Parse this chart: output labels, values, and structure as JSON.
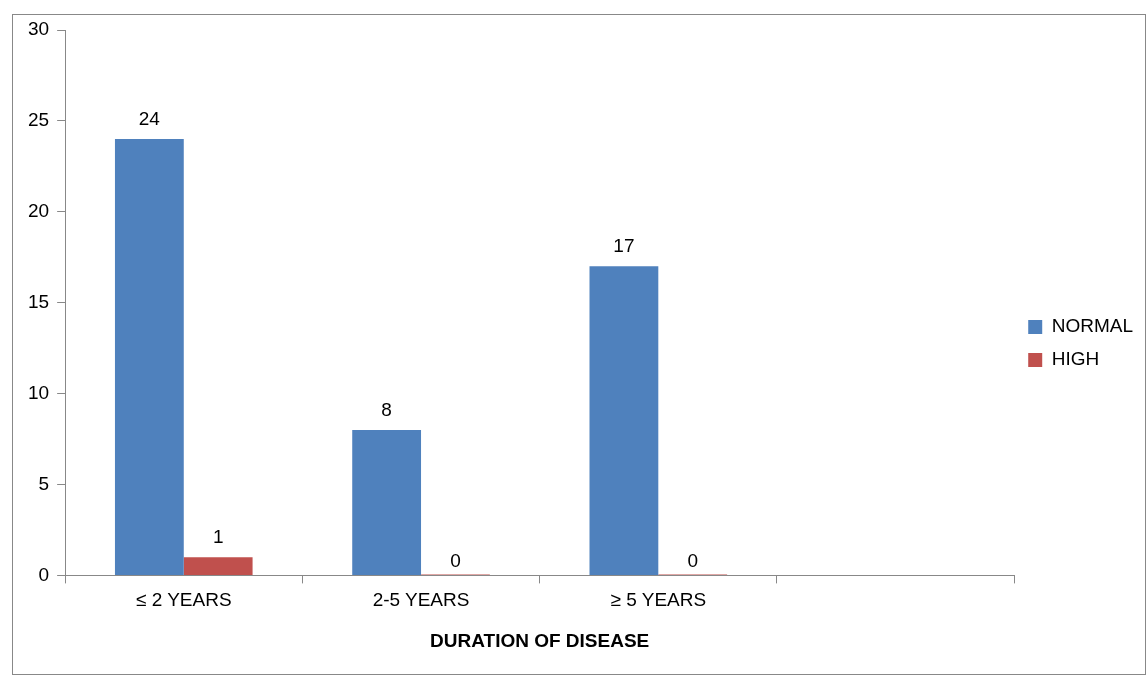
{
  "chart_data": {
    "type": "bar",
    "xlabel": "DURATION OF DISEASE",
    "categories": [
      "≤ 2 YEARS",
      "2-5 YEARS",
      "≥ 5 YEARS",
      null
    ],
    "series": [
      {
        "name": "NORMAL",
        "color": "#4f81bd",
        "values": [
          24,
          8,
          17,
          null
        ]
      },
      {
        "name": "HIGH",
        "color": "#c0504d",
        "values": [
          1,
          0,
          0,
          null
        ]
      }
    ],
    "ylim": [
      0,
      30
    ],
    "yticks": [
      0,
      5,
      10,
      15,
      20,
      25,
      30
    ],
    "grid": false,
    "legend": "right",
    "data_labels": true
  }
}
